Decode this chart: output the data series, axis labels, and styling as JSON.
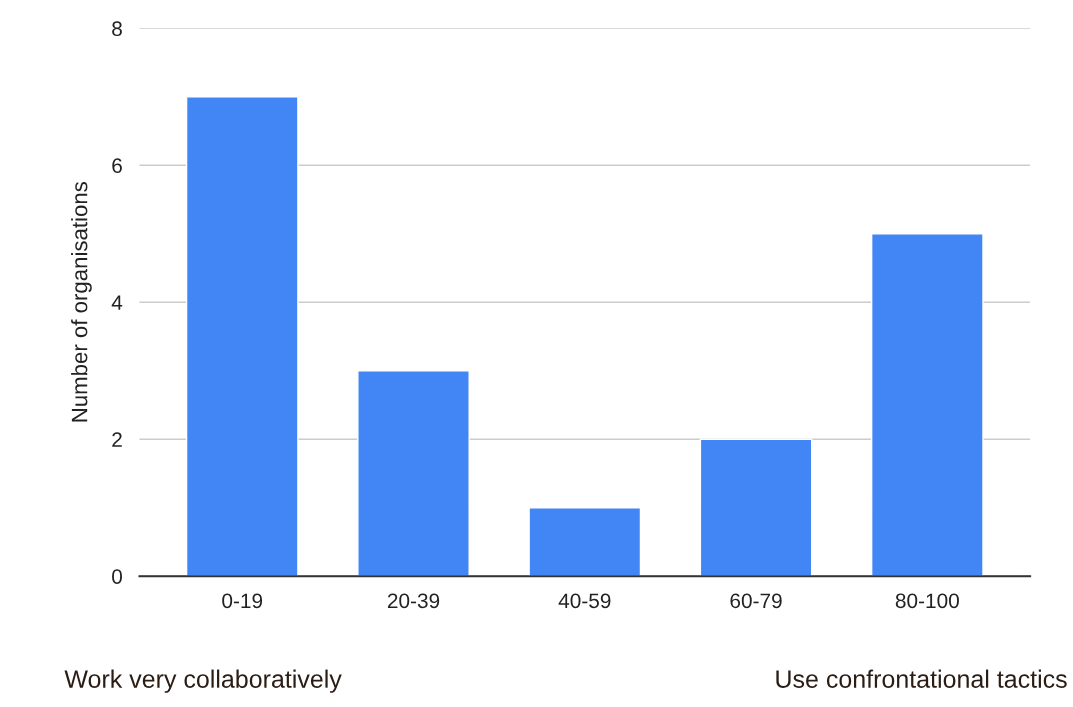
{
  "chart_data": {
    "type": "bar",
    "ylabel": "Number of organisations",
    "categories": [
      "0-19",
      "20-39",
      "40-59",
      "60-79",
      "80-100"
    ],
    "values": [
      7,
      3,
      1,
      2,
      5
    ],
    "color": "#4285f4",
    "ylim": [
      0,
      8
    ],
    "yticks": [
      0,
      2,
      4,
      6,
      8
    ],
    "grid": "y",
    "legend": false,
    "annotations": [
      "Work very collaboratively",
      "Use confrontational tactics"
    ]
  }
}
